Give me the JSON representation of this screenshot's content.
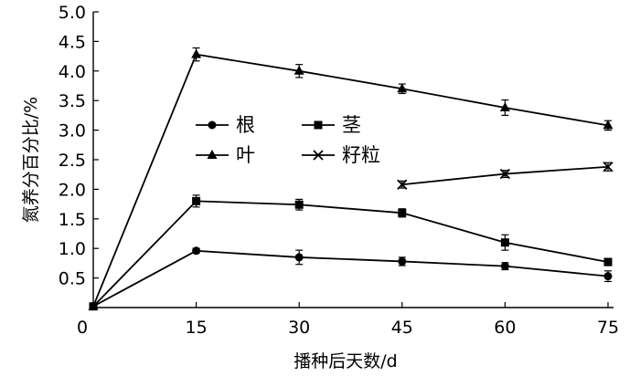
{
  "chart_data": {
    "type": "line",
    "xlabel": "播种后天数/d",
    "ylabel": "氮养分百分比/%",
    "xlim": [
      0,
      75
    ],
    "ylim": [
      0,
      5.0
    ],
    "x_ticks": [
      0,
      15,
      30,
      45,
      60,
      75
    ],
    "y_ticks": [
      0.5,
      1.0,
      1.5,
      2.0,
      2.5,
      3.0,
      3.5,
      4.0,
      4.5,
      5.0
    ],
    "x_tick_labels": [
      "0",
      "15",
      "30",
      "45",
      "60",
      "75"
    ],
    "y_tick_labels": [
      "0.5",
      "1.0",
      "1.5",
      "2.0",
      "2.5",
      "3.0",
      "3.5",
      "4.0",
      "4.5",
      "5.0"
    ],
    "grid": false,
    "legend_position": "center-left",
    "series": [
      {
        "name": "根",
        "marker": "circle",
        "x": [
          0,
          15,
          30,
          45,
          60,
          75
        ],
        "values": [
          0.02,
          0.96,
          0.85,
          0.78,
          0.7,
          0.53
        ],
        "errors": [
          0,
          0.04,
          0.12,
          0.07,
          0.06,
          0.09
        ]
      },
      {
        "name": "茎",
        "marker": "square",
        "x": [
          0,
          15,
          30,
          45,
          60,
          75
        ],
        "values": [
          0.02,
          1.8,
          1.74,
          1.6,
          1.1,
          0.77
        ],
        "errors": [
          0,
          0.1,
          0.09,
          0.07,
          0.13,
          0.06
        ]
      },
      {
        "name": "叶",
        "marker": "triangle",
        "x": [
          0,
          15,
          30,
          45,
          60,
          75
        ],
        "values": [
          0.02,
          4.28,
          4.0,
          3.7,
          3.38,
          3.08
        ],
        "errors": [
          0,
          0.11,
          0.11,
          0.08,
          0.13,
          0.08
        ]
      },
      {
        "name": "籽粒",
        "marker": "x",
        "x": [
          45,
          60,
          75
        ],
        "values": [
          2.08,
          2.26,
          2.38
        ],
        "errors": [
          0.06,
          0.06,
          0.07
        ]
      }
    ]
  }
}
